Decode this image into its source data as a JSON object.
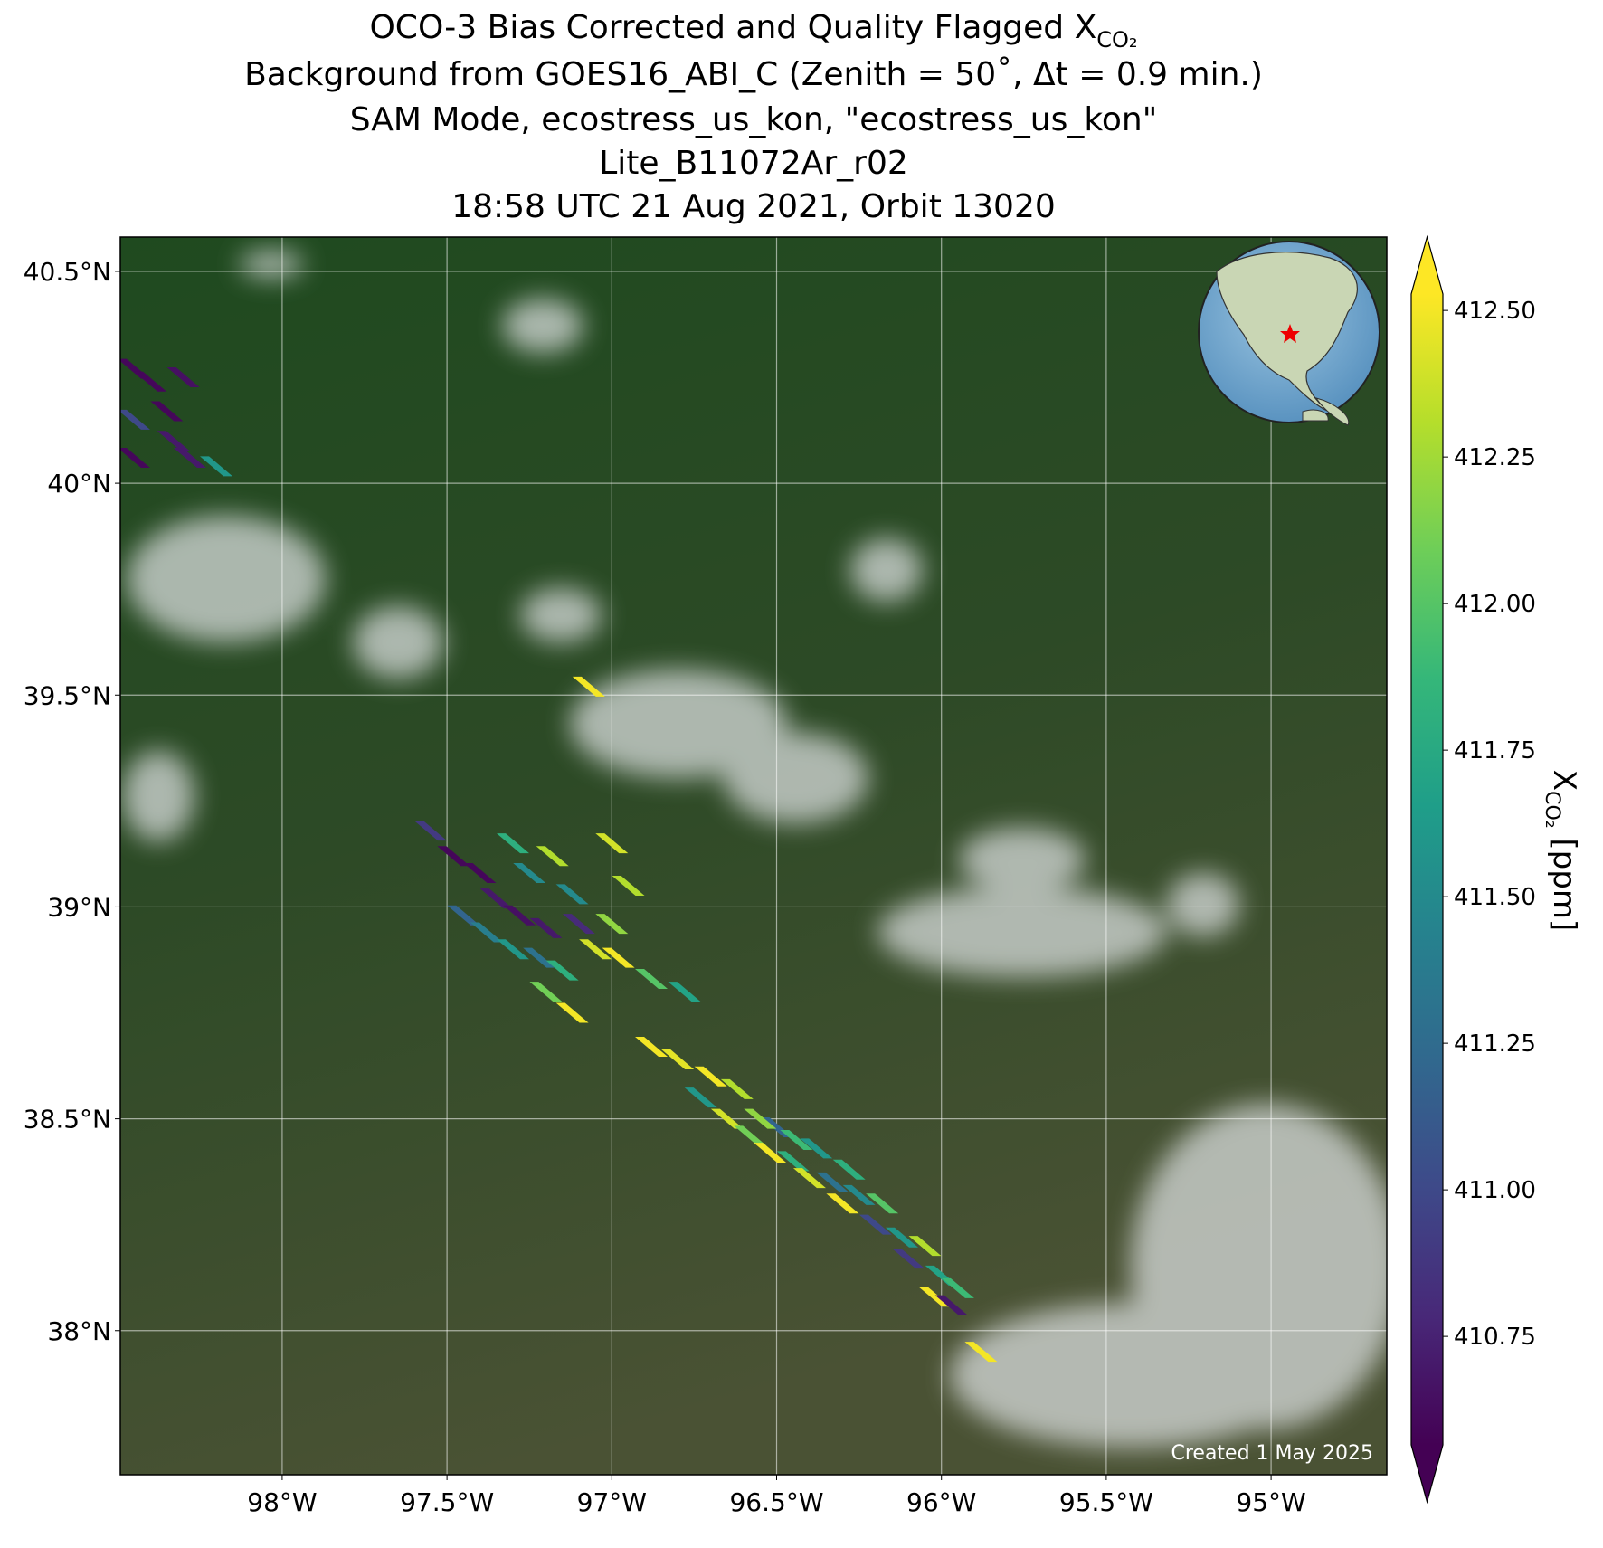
{
  "chart_data": {
    "type": "map",
    "title": [
      {
        "text": "OCO-3 Bias Corrected and Quality Flagged X",
        "sub": "CO₂"
      },
      {
        "text": "Background from GOES16_ABI_C (Zenith = 50˚, Δt =  0.9 min.)"
      },
      {
        "text": "SAM Mode, ecostress_us_kon, \"ecostress_us_kon\""
      },
      {
        "text": "Lite_B11072Ar_r02"
      },
      {
        "text": "18:58 UTC 21 Aug 2021, Orbit 13020"
      }
    ],
    "xlim": [
      -98.491,
      -94.649
    ],
    "ylim": [
      37.66,
      40.581
    ],
    "xticks": [
      {
        "value": -98,
        "label": "98°W"
      },
      {
        "value": -97.5,
        "label": "97.5°W"
      },
      {
        "value": -97,
        "label": "97°W"
      },
      {
        "value": -96.5,
        "label": "96.5°W"
      },
      {
        "value": -96,
        "label": "96°W"
      },
      {
        "value": -95.5,
        "label": "95.5°W"
      },
      {
        "value": -95,
        "label": "95°W"
      }
    ],
    "yticks": [
      {
        "value": 38,
        "label": "38°N"
      },
      {
        "value": 38.5,
        "label": "38.5°N"
      },
      {
        "value": 39,
        "label": "39°N"
      },
      {
        "value": 39.5,
        "label": "39.5°N"
      },
      {
        "value": 40,
        "label": "40°N"
      },
      {
        "value": 40.5,
        "label": "40.5°N"
      }
    ],
    "grid": true,
    "colorbar": {
      "label": {
        "text": "X",
        "sub": "CO₂",
        "rest": " [ppm]"
      },
      "lim": [
        410.565,
        412.528
      ],
      "ticks": [
        {
          "value": 410.75,
          "label": "410.75"
        },
        {
          "value": 411,
          "label": "411.00"
        },
        {
          "value": 411.25,
          "label": "411.25"
        },
        {
          "value": 411.5,
          "label": "411.50"
        },
        {
          "value": 411.75,
          "label": "411.75"
        },
        {
          "value": 412,
          "label": "412.00"
        },
        {
          "value": 412.25,
          "label": "412.25"
        },
        {
          "value": 412.5,
          "label": "412.50"
        }
      ],
      "colors": [
        "#440154",
        "#482878",
        "#3e4989",
        "#31688e",
        "#26828e",
        "#1f9e89",
        "#35b779",
        "#6ece58",
        "#b5de2b",
        "#fde725"
      ]
    },
    "soundings": {
      "lon": [
        -98.45,
        -98.4,
        -98.3,
        -98.35,
        -98.45,
        -98.33,
        -98.45,
        -98.28,
        -98.2,
        -97.07,
        -97.55,
        -97.48,
        -97.4,
        -97.35,
        -97.28,
        -97.45,
        -97.38,
        -97.3,
        -97.22,
        -97.2,
        -97.25,
        -97.18,
        -97.12,
        -97.1,
        -97.15,
        -97.2,
        -97.12,
        -97.05,
        -96.98,
        -97.0,
        -96.95,
        -97.3,
        -97.0,
        -96.88,
        -96.78,
        -96.88,
        -96.8,
        -96.7,
        -96.73,
        -96.62,
        -96.65,
        -96.58,
        -96.52,
        -96.5,
        -96.45,
        -96.4,
        -96.38,
        -96.33,
        -96.3,
        -96.25,
        -96.2,
        -96.18,
        -96.12,
        -96.1,
        -96.05,
        -96.0,
        -96.02,
        -95.95,
        -95.97,
        -95.88,
        -96.55,
        -96.44,
        -96.28
      ],
      "lat": [
        40.27,
        40.24,
        40.25,
        40.17,
        40.15,
        40.1,
        40.06,
        40.06,
        40.04,
        39.52,
        39.18,
        39.12,
        39.08,
        39.02,
        38.98,
        38.98,
        38.94,
        38.9,
        38.88,
        38.95,
        39.08,
        39.12,
        39.03,
        38.96,
        38.85,
        38.8,
        38.75,
        38.9,
        38.88,
        38.96,
        39.05,
        39.15,
        39.15,
        38.83,
        38.8,
        38.67,
        38.64,
        38.6,
        38.55,
        38.57,
        38.5,
        38.46,
        38.42,
        38.48,
        38.4,
        38.36,
        38.43,
        38.35,
        38.3,
        38.32,
        38.25,
        38.3,
        38.22,
        38.17,
        38.2,
        38.13,
        38.08,
        38.1,
        38.06,
        37.95,
        38.5,
        38.45,
        38.38
      ],
      "values": [
        410.6,
        410.6,
        410.65,
        410.6,
        411.0,
        410.7,
        410.6,
        410.7,
        411.6,
        412.5,
        410.9,
        410.6,
        410.6,
        410.7,
        410.65,
        411.2,
        411.4,
        411.6,
        411.3,
        410.7,
        411.5,
        412.3,
        411.5,
        410.8,
        411.8,
        412.1,
        412.5,
        412.4,
        412.5,
        412.2,
        412.3,
        411.8,
        412.4,
        412.0,
        411.7,
        412.5,
        412.45,
        412.5,
        411.6,
        412.3,
        412.4,
        412.1,
        412.5,
        411.2,
        411.8,
        412.4,
        411.6,
        411.3,
        412.5,
        411.5,
        411.0,
        412.0,
        411.6,
        410.9,
        412.3,
        411.7,
        412.5,
        411.9,
        410.7,
        412.5,
        412.2,
        411.9,
        411.8
      ]
    },
    "note": "Created 1 May 2025"
  }
}
